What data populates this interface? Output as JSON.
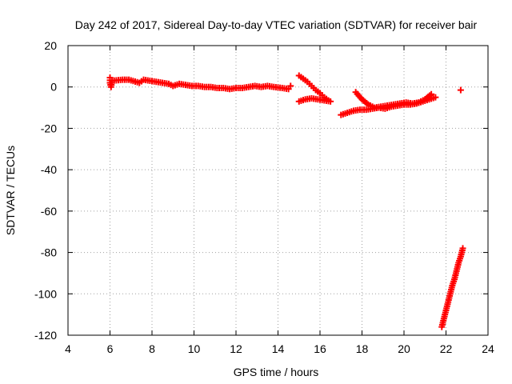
{
  "chart_data": {
    "type": "scatter",
    "title": "Day 242 of 2017, Sidereal Day-to-day VTEC variation (SDTVAR) for receiver bair",
    "xlabel": "GPS time / hours",
    "ylabel": "SDTVAR / TECUs",
    "xlim": [
      4,
      24
    ],
    "ylim": [
      -120,
      20
    ],
    "xticks": [
      "4",
      "6",
      "8",
      "10",
      "12",
      "14",
      "16",
      "18",
      "20",
      "22",
      "24"
    ],
    "yticks": [
      "20",
      "0",
      "-20",
      "-40",
      "-60",
      "-80",
      "-100",
      "-120"
    ],
    "grid": true,
    "marker": "plus",
    "series_color": "#ff0000",
    "series": [
      {
        "x": [
          6.0,
          6.0,
          6.05,
          6.1,
          6.6,
          6.9,
          7.4,
          7.6,
          7.9,
          8.2,
          8.5,
          8.8,
          9.0,
          9.3,
          9.6,
          9.9,
          10.2,
          10.5,
          10.8,
          11.1,
          11.4,
          11.7,
          12.0,
          12.3,
          12.6,
          12.9,
          13.2,
          13.5,
          13.8,
          14.2,
          14.5,
          14.6
        ],
        "y": [
          4.5,
          2.0,
          0.0,
          3.0,
          3.5,
          3.5,
          2.0,
          3.5,
          3.0,
          2.5,
          2.0,
          1.5,
          0.5,
          1.5,
          1.0,
          0.5,
          0.5,
          0.0,
          0.0,
          -0.5,
          -0.5,
          -1.0,
          -0.5,
          -0.5,
          0.0,
          0.5,
          0.0,
          0.5,
          0.0,
          -0.5,
          -1.0,
          0.5
        ]
      },
      {
        "x": [
          15.0,
          15.2,
          15.4,
          15.6,
          15.8,
          16.0,
          16.2,
          16.4
        ],
        "y": [
          5.5,
          4.0,
          2.5,
          0.5,
          -1.5,
          -3.0,
          -5.0,
          -6.5
        ]
      },
      {
        "x": [
          15.0,
          15.3,
          15.6,
          15.9,
          16.2,
          16.5
        ],
        "y": [
          -7.0,
          -6.0,
          -5.5,
          -6.0,
          -6.5,
          -7.0
        ]
      },
      {
        "x": [
          17.0,
          17.3,
          17.6,
          17.9,
          18.2,
          18.5,
          18.8,
          19.1,
          19.4,
          19.7,
          20.0,
          20.3,
          20.6,
          20.9,
          21.2,
          21.5
        ],
        "y": [
          -13.5,
          -12.5,
          -11.5,
          -11.0,
          -11.0,
          -10.5,
          -10.0,
          -10.5,
          -9.5,
          -9.0,
          -8.5,
          -8.5,
          -8.0,
          -7.0,
          -6.0,
          -5.0
        ]
      },
      {
        "x": [
          17.7,
          18.0,
          18.3,
          18.6,
          18.9,
          19.2,
          19.5,
          19.8,
          20.1,
          20.4,
          20.7,
          21.0,
          21.3
        ],
        "y": [
          -2.5,
          -6.0,
          -8.5,
          -10.0,
          -9.5,
          -9.0,
          -8.5,
          -8.0,
          -7.5,
          -8.0,
          -7.5,
          -6.0,
          -3.5
        ]
      },
      {
        "x": [
          22.7
        ],
        "y": [
          -1.5
        ]
      },
      {
        "x": [
          21.8,
          21.9,
          22.0,
          22.1,
          22.2,
          22.3,
          22.4,
          22.5,
          22.6,
          22.7,
          22.8
        ],
        "y": [
          -116.0,
          -112.0,
          -108.0,
          -104.0,
          -100.0,
          -96.0,
          -93.0,
          -89.0,
          -85.0,
          -82.0,
          -78.0
        ]
      }
    ]
  }
}
